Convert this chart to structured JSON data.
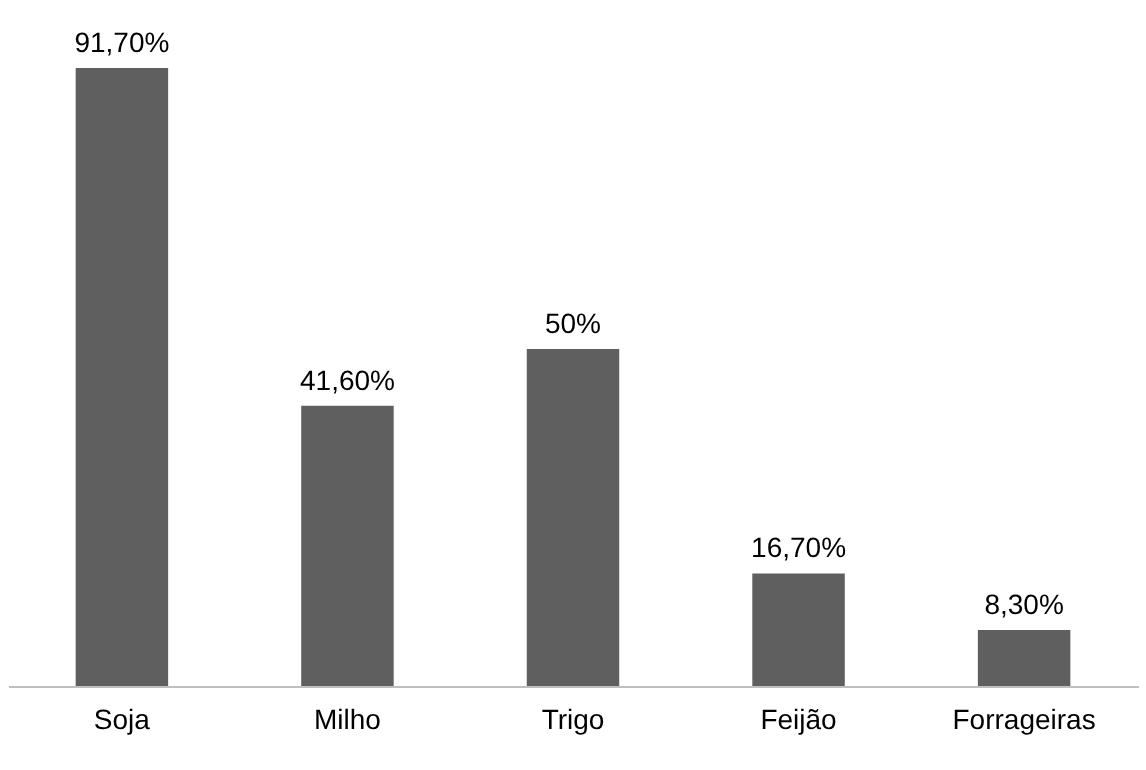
{
  "chart_data": {
    "type": "bar",
    "categories": [
      "Soja",
      "Milho",
      "Trigo",
      "Feijão",
      "Forrageiras"
    ],
    "values": [
      91.7,
      41.6,
      50,
      16.7,
      8.3
    ],
    "value_labels": [
      "91,70%",
      "41,60%",
      "50%",
      "16,70%",
      "8,30%"
    ],
    "color": "#5f5f5f"
  }
}
